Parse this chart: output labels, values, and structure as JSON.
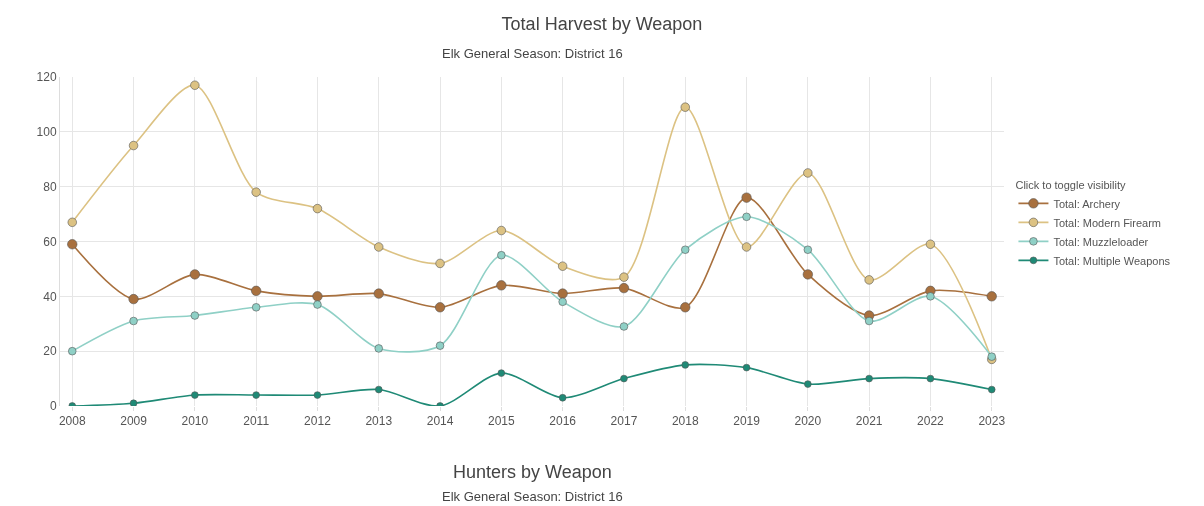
{
  "chart_data": {
    "type": "line",
    "title": "Total Harvest by Weapon",
    "subtitle": "Elk General Season: District 16",
    "categories": [
      "2008",
      "2009",
      "2010",
      "2011",
      "2012",
      "2013",
      "2014",
      "2015",
      "2016",
      "2017",
      "2018",
      "2019",
      "2020",
      "2021",
      "2022",
      "2023"
    ],
    "series": [
      {
        "name": "Total: Archery",
        "color": "#a8703e",
        "values": [
          59,
          39,
          48,
          42,
          40,
          41,
          36,
          44,
          41,
          43,
          36,
          76,
          48,
          33,
          42,
          40
        ]
      },
      {
        "name": "Total: Modern Firearm",
        "color": "#dcc283",
        "values": [
          67,
          95,
          117,
          78,
          72,
          58,
          52,
          64,
          51,
          47,
          109,
          58,
          85,
          46,
          59,
          17
        ]
      },
      {
        "name": "Total: Muzzleloader",
        "color": "#8fd0c6",
        "values": [
          20,
          31,
          33,
          36,
          37,
          21,
          22,
          55,
          38,
          29,
          57,
          69,
          57,
          31,
          40,
          18
        ]
      },
      {
        "name": "Total: Multiple Weapons",
        "color": "#1f8a76",
        "values": [
          0,
          1,
          4,
          4,
          4,
          6,
          0,
          12,
          3,
          10,
          15,
          14,
          8,
          10,
          10,
          6
        ]
      }
    ],
    "ylim": [
      0,
      120
    ],
    "yticks": [
      0,
      20,
      40,
      60,
      80,
      100,
      120
    ],
    "grid": true,
    "legend": "right",
    "legend_title": "Click to toggle visibility",
    "marker": "circle",
    "line_style": "solid",
    "annotations": [
      "Hunters by Weapon",
      "Elk General Season: District 16"
    ]
  }
}
